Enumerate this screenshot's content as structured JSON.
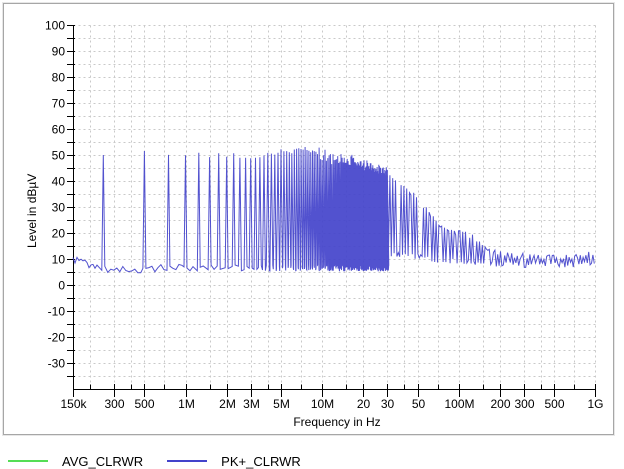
{
  "window": {
    "background": "#ffffff",
    "panel_border": "#a6a6a6",
    "grid_color": "#c9c9c9",
    "axis_color": "#000000"
  },
  "chart_data": {
    "type": "line",
    "title": "",
    "xlabel": "Frequency in Hz",
    "ylabel": "Level in dBµV",
    "x_scale": "log",
    "x_range_hz": [
      150000,
      1000000000
    ],
    "y_range_db": [
      -40,
      100
    ],
    "y_major_tick_step": 10,
    "y_minor_tick_step": 5,
    "grid": "dashed",
    "legend_position": "bottom-left",
    "y_tick_labels": [
      100,
      90,
      80,
      70,
      60,
      50,
      40,
      30,
      20,
      10,
      0,
      -10,
      -20,
      -30
    ],
    "x_ticks": [
      {
        "hz": 150000,
        "label": "150k"
      },
      {
        "hz": 200000,
        "label": ""
      },
      {
        "hz": 300000,
        "label": "300"
      },
      {
        "hz": 400000,
        "label": ""
      },
      {
        "hz": 500000,
        "label": "500"
      },
      {
        "hz": 700000,
        "label": ""
      },
      {
        "hz": 1000000,
        "label": "1M"
      },
      {
        "hz": 1500000,
        "label": ""
      },
      {
        "hz": 2000000,
        "label": "2M"
      },
      {
        "hz": 3000000,
        "label": "3M"
      },
      {
        "hz": 4000000,
        "label": ""
      },
      {
        "hz": 5000000,
        "label": "5M"
      },
      {
        "hz": 7000000,
        "label": ""
      },
      {
        "hz": 10000000,
        "label": "10M"
      },
      {
        "hz": 15000000,
        "label": ""
      },
      {
        "hz": 20000000,
        "label": "20"
      },
      {
        "hz": 30000000,
        "label": "30"
      },
      {
        "hz": 40000000,
        "label": ""
      },
      {
        "hz": 50000000,
        "label": "50"
      },
      {
        "hz": 70000000,
        "label": ""
      },
      {
        "hz": 100000000,
        "label": "100M"
      },
      {
        "hz": 150000000,
        "label": ""
      },
      {
        "hz": 200000000,
        "label": "200"
      },
      {
        "hz": 300000000,
        "label": "300"
      },
      {
        "hz": 400000000,
        "label": ""
      },
      {
        "hz": 500000000,
        "label": "500"
      },
      {
        "hz": 700000000,
        "label": ""
      },
      {
        "hz": 1000000000,
        "label": "1G"
      }
    ],
    "series": [
      {
        "name": "AVG_CLRWR",
        "color": "#55dd55",
        "visible_in_plot": false
      },
      {
        "name": "PK+_CLRWR",
        "color": "#4343cb",
        "visible_in_plot": true,
        "noise_floor_db": 6.5,
        "comb": {
          "fundamental_hz": 250000,
          "first_harmonic_hz": 250000,
          "last_harmonic_hz": 30000000,
          "peak_envelope_db": [
            [
              250000,
              50.5
            ],
            [
              500000,
              51
            ],
            [
              750000,
              50
            ],
            [
              1000000,
              49.5
            ],
            [
              1500000,
              50
            ],
            [
              2000000,
              50.5
            ],
            [
              3000000,
              50
            ],
            [
              4000000,
              50.5
            ],
            [
              5000000,
              51
            ],
            [
              7000000,
              52
            ],
            [
              9000000,
              52
            ],
            [
              11000000,
              51.5
            ],
            [
              13000000,
              50.5
            ],
            [
              15000000,
              49.5
            ],
            [
              18000000,
              48.5
            ],
            [
              20000000,
              48
            ],
            [
              25000000,
              46.5
            ],
            [
              30000000,
              44.5
            ]
          ]
        },
        "envelope_above_30mhz_db": [
          [
            30500000,
            42.5
          ],
          [
            33000000,
            42
          ],
          [
            36000000,
            40.5
          ],
          [
            40000000,
            38
          ],
          [
            45000000,
            35.5
          ],
          [
            50000000,
            33
          ],
          [
            55000000,
            30.5
          ],
          [
            60000000,
            28
          ],
          [
            65000000,
            26
          ],
          [
            70000000,
            24
          ],
          [
            75000000,
            22.5
          ],
          [
            80000000,
            21
          ],
          [
            90000000,
            20
          ],
          [
            100000000,
            20.5
          ],
          [
            110000000,
            21
          ],
          [
            120000000,
            19.5
          ],
          [
            130000000,
            17.5
          ],
          [
            140000000,
            16
          ],
          [
            160000000,
            14
          ],
          [
            180000000,
            13
          ],
          [
            200000000,
            12.5
          ],
          [
            250000000,
            11.5
          ],
          [
            300000000,
            11
          ],
          [
            400000000,
            10.5
          ],
          [
            500000000,
            11
          ],
          [
            600000000,
            10.5
          ],
          [
            700000000,
            11
          ],
          [
            800000000,
            11
          ],
          [
            900000000,
            11.5
          ],
          [
            1000000000,
            12.5
          ]
        ],
        "lower_band_above_30mhz_db": [
          [
            30500000,
            11
          ],
          [
            50000000,
            10
          ],
          [
            60000000,
            9
          ],
          [
            80000000,
            8
          ],
          [
            100000000,
            8
          ],
          [
            130000000,
            7.5
          ],
          [
            200000000,
            7
          ],
          [
            400000000,
            6.5
          ],
          [
            700000000,
            6.8
          ],
          [
            1000000000,
            7.5
          ]
        ]
      }
    ]
  },
  "legend": {
    "items": [
      {
        "label": "AVG_CLRWR",
        "color": "#55dd55"
      },
      {
        "label": "PK+_CLRWR",
        "color": "#4343cb"
      }
    ]
  }
}
